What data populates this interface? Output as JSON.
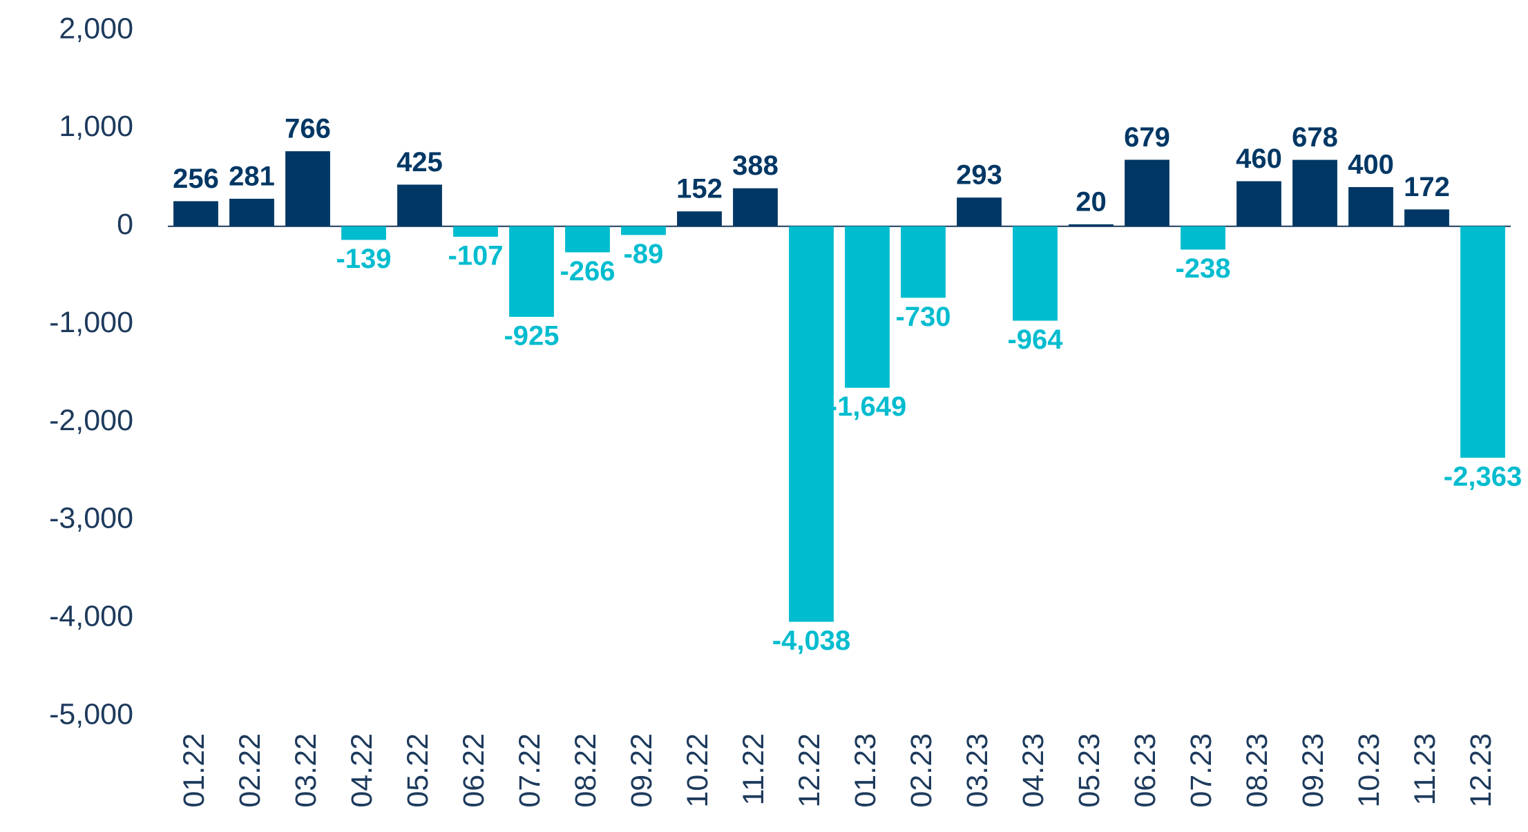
{
  "chart_data": {
    "type": "bar",
    "categories": [
      "01.22",
      "02.22",
      "03.22",
      "04.22",
      "05.22",
      "06.22",
      "07.22",
      "08.22",
      "09.22",
      "10.22",
      "11.22",
      "12.22",
      "01.23",
      "02.23",
      "03.23",
      "04.23",
      "05.23",
      "06.23",
      "07.23",
      "08.23",
      "09.23",
      "10.23",
      "11.23",
      "12.23"
    ],
    "values": [
      256,
      281,
      766,
      -139,
      425,
      -107,
      -925,
      -266,
      -89,
      152,
      388,
      -4038,
      -1649,
      -730,
      293,
      -964,
      20,
      679,
      -238,
      460,
      678,
      400,
      172,
      -2363
    ],
    "value_labels": [
      "256",
      "281",
      "766",
      "-139",
      "425",
      "-107",
      "-925",
      "-266",
      "-89",
      "152",
      "388",
      "-4,038",
      "-1,649",
      "-730",
      "293",
      "-964",
      "20",
      "679",
      "-238",
      "460",
      "678",
      "400",
      "172",
      "-2,363"
    ],
    "color": "#003764",
    "negative_color": "#00bccf",
    "ylim": [
      -5000,
      2000
    ],
    "yticks": [
      {
        "value": -5000,
        "label": "-5,000"
      },
      {
        "value": -4000,
        "label": "-4,000"
      },
      {
        "value": -3000,
        "label": "-3,000"
      },
      {
        "value": -2000,
        "label": "-2,000"
      },
      {
        "value": -1000,
        "label": "-1,000"
      },
      0,
      {
        "value": 1000,
        "label": "1,000"
      },
      {
        "value": 2000,
        "label": "2,000"
      }
    ],
    "grid": false
  }
}
